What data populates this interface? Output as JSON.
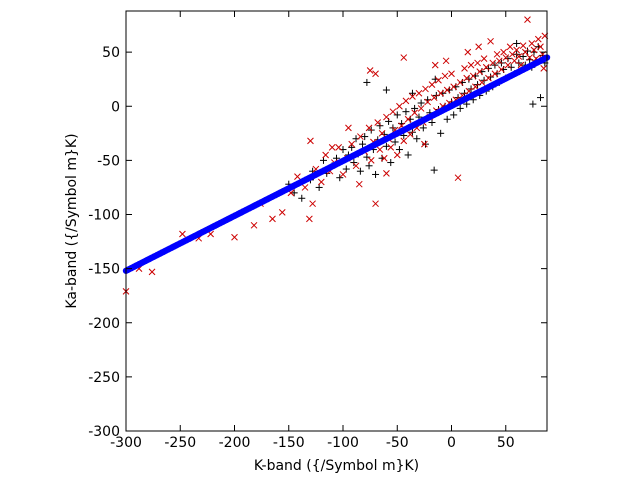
{
  "chart_data": {
    "type": "scatter",
    "title": "",
    "xlabel": "K-band ({/Symbol m}K)",
    "ylabel": "Ka-band ({/Symbol m}K)",
    "xlim": [
      -300,
      88
    ],
    "ylim": [
      -300,
      88
    ],
    "xticks": [
      -300,
      -250,
      -200,
      -150,
      -100,
      -50,
      0,
      50
    ],
    "yticks": [
      -300,
      -250,
      -200,
      -150,
      -100,
      -50,
      0,
      50
    ],
    "xtick_labels": [
      "-300",
      "-250",
      "-200",
      "-150",
      "-100",
      "-50",
      "0",
      "50"
    ],
    "ytick_labels": [
      "-300",
      "-250",
      "-200",
      "-150",
      "-100",
      "-50",
      "0",
      "50"
    ],
    "grid": false,
    "legend": "none",
    "series": [
      {
        "marker": "plus",
        "color": "#000000",
        "points": [
          [
            -150,
            -72
          ],
          [
            -145,
            -80
          ],
          [
            -138,
            -85
          ],
          [
            -130,
            -68
          ],
          [
            -128,
            -60
          ],
          [
            -122,
            -75
          ],
          [
            -118,
            -50
          ],
          [
            -115,
            -62
          ],
          [
            -110,
            -55
          ],
          [
            -106,
            -48
          ],
          [
            -103,
            -66
          ],
          [
            -100,
            -40
          ],
          [
            -97,
            -58
          ],
          [
            -95,
            -45
          ],
          [
            -92,
            -38
          ],
          [
            -90,
            -52
          ],
          [
            -88,
            -30
          ],
          [
            -86,
            -44
          ],
          [
            -84,
            -60
          ],
          [
            -82,
            -35
          ],
          [
            -80,
            -28
          ],
          [
            -78,
            -47
          ],
          [
            -76,
            -55
          ],
          [
            -74,
            -22
          ],
          [
            -72,
            -40
          ],
          [
            -70,
            -63
          ],
          [
            -68,
            -31
          ],
          [
            -66,
            -18
          ],
          [
            -64,
            -48
          ],
          [
            -62,
            -26
          ],
          [
            -60,
            -37
          ],
          [
            -58,
            -14
          ],
          [
            -56,
            -52
          ],
          [
            -54,
            -20
          ],
          [
            -52,
            -33
          ],
          [
            -50,
            -8
          ],
          [
            -48,
            -40
          ],
          [
            -46,
            -16
          ],
          [
            -44,
            -27
          ],
          [
            -42,
            -5
          ],
          [
            -40,
            -45
          ],
          [
            -38,
            -12
          ],
          [
            -36,
            -24
          ],
          [
            -34,
            -2
          ],
          [
            -32,
            -30
          ],
          [
            -30,
            -10
          ],
          [
            -28,
            3
          ],
          [
            -26,
            -20
          ],
          [
            -24,
            -35
          ],
          [
            -22,
            6
          ],
          [
            -20,
            -6
          ],
          [
            -18,
            -15
          ],
          [
            -16,
            -59
          ],
          [
            -14,
            10
          ],
          [
            -12,
            -3
          ],
          [
            -10,
            -25
          ],
          [
            -8,
            12
          ],
          [
            -6,
            0
          ],
          [
            -4,
            -12
          ],
          [
            -2,
            15
          ],
          [
            0,
            4
          ],
          [
            2,
            -8
          ],
          [
            4,
            18
          ],
          [
            6,
            8
          ],
          [
            8,
            -2
          ],
          [
            10,
            22
          ],
          [
            12,
            12
          ],
          [
            14,
            2
          ],
          [
            16,
            25
          ],
          [
            18,
            16
          ],
          [
            20,
            6
          ],
          [
            22,
            28
          ],
          [
            24,
            20
          ],
          [
            26,
            10
          ],
          [
            28,
            32
          ],
          [
            30,
            24
          ],
          [
            32,
            14
          ],
          [
            34,
            35
          ],
          [
            36,
            27
          ],
          [
            38,
            18
          ],
          [
            40,
            38
          ],
          [
            42,
            30
          ],
          [
            44,
            22
          ],
          [
            46,
            40
          ],
          [
            48,
            34
          ],
          [
            50,
            26
          ],
          [
            52,
            44
          ],
          [
            55,
            36
          ],
          [
            58,
            30
          ],
          [
            60,
            48
          ],
          [
            62,
            40
          ],
          [
            64,
            33
          ],
          [
            66,
            46
          ],
          [
            68,
            38
          ],
          [
            70,
            51
          ],
          [
            72,
            43
          ],
          [
            74,
            36
          ],
          [
            76,
            50
          ],
          [
            78,
            42
          ],
          [
            80,
            55
          ],
          [
            82,
            8
          ],
          [
            84,
            47
          ],
          [
            86,
            40
          ],
          [
            -78,
            22
          ],
          [
            -60,
            15
          ],
          [
            -36,
            12
          ],
          [
            -15,
            25
          ],
          [
            60,
            58
          ],
          [
            75,
            2
          ]
        ]
      },
      {
        "marker": "cross",
        "color": "#cc0000",
        "points": [
          [
            -300,
            -171
          ],
          [
            -288,
            -150
          ],
          [
            -276,
            -153
          ],
          [
            -248,
            -118
          ],
          [
            -233,
            -122
          ],
          [
            -222,
            -118
          ],
          [
            -200,
            -121
          ],
          [
            -182,
            -110
          ],
          [
            -176,
            -90
          ],
          [
            -165,
            -104
          ],
          [
            -156,
            -98
          ],
          [
            -148,
            -80
          ],
          [
            -142,
            -65
          ],
          [
            -135,
            -75
          ],
          [
            -131,
            -104
          ],
          [
            -128,
            -90
          ],
          [
            -130,
            -32
          ],
          [
            -125,
            -58
          ],
          [
            -120,
            -70
          ],
          [
            -116,
            -45
          ],
          [
            -112,
            -60
          ],
          [
            -108,
            -52
          ],
          [
            -104,
            -38
          ],
          [
            -100,
            -63
          ],
          [
            -96,
            -48
          ],
          [
            -92,
            -35
          ],
          [
            -88,
            -55
          ],
          [
            -84,
            -28
          ],
          [
            -80,
            -42
          ],
          [
            -76,
            -20
          ],
          [
            -74,
            -50
          ],
          [
            -72,
            -33
          ],
          [
            -70,
            -90
          ],
          [
            -68,
            -15
          ],
          [
            -66,
            -40
          ],
          [
            -64,
            -25
          ],
          [
            -62,
            -48
          ],
          [
            -60,
            -10
          ],
          [
            -58,
            -30
          ],
          [
            -56,
            -38
          ],
          [
            -54,
            -5
          ],
          [
            -52,
            -22
          ],
          [
            -50,
            -45
          ],
          [
            -48,
            0
          ],
          [
            -46,
            -18
          ],
          [
            -44,
            -32
          ],
          [
            -42,
            5
          ],
          [
            -40,
            -12
          ],
          [
            -38,
            -26
          ],
          [
            -36,
            9
          ],
          [
            -34,
            -6
          ],
          [
            -32,
            -20
          ],
          [
            -30,
            12
          ],
          [
            -28,
            -2
          ],
          [
            -26,
            -15
          ],
          [
            -24,
            16
          ],
          [
            -22,
            4
          ],
          [
            -20,
            -10
          ],
          [
            -18,
            20
          ],
          [
            -16,
            8
          ],
          [
            -14,
            -4
          ],
          [
            -12,
            24
          ],
          [
            -10,
            12
          ],
          [
            -8,
            0
          ],
          [
            -6,
            28
          ],
          [
            -4,
            15
          ],
          [
            -2,
            3
          ],
          [
            0,
            30
          ],
          [
            2,
            18
          ],
          [
            4,
            6
          ],
          [
            6,
            -66
          ],
          [
            8,
            22
          ],
          [
            10,
            10
          ],
          [
            12,
            35
          ],
          [
            14,
            26
          ],
          [
            16,
            14
          ],
          [
            18,
            38
          ],
          [
            20,
            28
          ],
          [
            22,
            18
          ],
          [
            24,
            40
          ],
          [
            26,
            32
          ],
          [
            28,
            22
          ],
          [
            30,
            44
          ],
          [
            32,
            36
          ],
          [
            34,
            26
          ],
          [
            36,
            60
          ],
          [
            38,
            40
          ],
          [
            40,
            30
          ],
          [
            42,
            48
          ],
          [
            44,
            42
          ],
          [
            46,
            34
          ],
          [
            48,
            50
          ],
          [
            50,
            45
          ],
          [
            52,
            38
          ],
          [
            54,
            55
          ],
          [
            56,
            48
          ],
          [
            58,
            42
          ],
          [
            60,
            52
          ],
          [
            62,
            46
          ],
          [
            64,
            38
          ],
          [
            66,
            56
          ],
          [
            68,
            50
          ],
          [
            70,
            80
          ],
          [
            72,
            45
          ],
          [
            74,
            58
          ],
          [
            76,
            52
          ],
          [
            78,
            44
          ],
          [
            80,
            62
          ],
          [
            82,
            55
          ],
          [
            84,
            48
          ],
          [
            86,
            65
          ],
          [
            85,
            35
          ],
          [
            -75,
            33
          ],
          [
            -70,
            30
          ],
          [
            -15,
            38
          ],
          [
            -5,
            42
          ],
          [
            15,
            50
          ],
          [
            25,
            55
          ],
          [
            -44,
            45
          ],
          [
            -25,
            -35
          ],
          [
            -60,
            -62
          ],
          [
            -85,
            -72
          ],
          [
            -110,
            -38
          ],
          [
            -95,
            -20
          ]
        ]
      },
      {
        "marker": "dot",
        "color": "#0000ff",
        "fit_line": {
          "x": [
            -300,
            88
          ],
          "y": [
            -152,
            45
          ]
        }
      }
    ]
  }
}
